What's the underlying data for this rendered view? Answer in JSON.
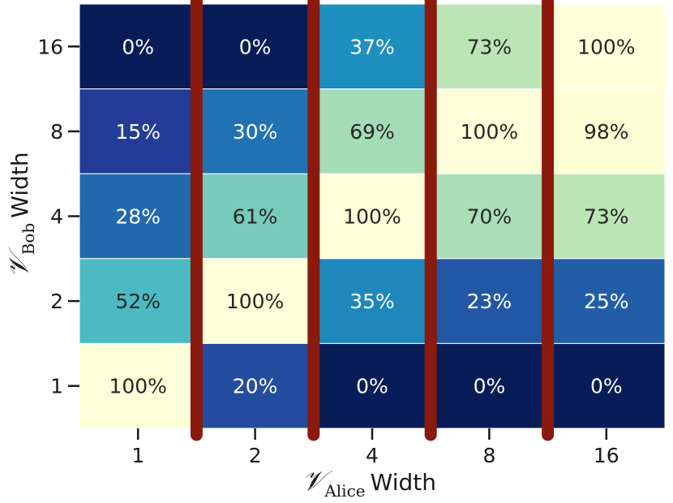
{
  "chart_data": {
    "type": "heatmap",
    "x_symbol": "𝒱",
    "x_subscript": "Alice",
    "x_word": "Width",
    "y_symbol": "𝒱",
    "y_subscript": "Bob",
    "y_word": "Width",
    "x_categories": [
      "1",
      "2",
      "4",
      "8",
      "16"
    ],
    "y_categories": [
      "16",
      "8",
      "4",
      "2",
      "1"
    ],
    "values": [
      [
        0,
        0,
        37,
        73,
        100
      ],
      [
        15,
        30,
        69,
        100,
        98
      ],
      [
        28,
        61,
        100,
        70,
        73
      ],
      [
        52,
        100,
        35,
        23,
        25
      ],
      [
        100,
        20,
        0,
        0,
        0
      ]
    ],
    "labels": [
      [
        "0%",
        "0%",
        "37%",
        "73%",
        "100%"
      ],
      [
        "15%",
        "30%",
        "69%",
        "100%",
        "98%"
      ],
      [
        "28%",
        "61%",
        "100%",
        "70%",
        "73%"
      ],
      [
        "52%",
        "100%",
        "35%",
        "23%",
        "25%"
      ],
      [
        "100%",
        "20%",
        "0%",
        "0%",
        "0%"
      ]
    ],
    "value_range": [
      0,
      100
    ],
    "colormap": [
      "#081d58",
      "#253494",
      "#225ea8",
      "#1d91c0",
      "#41b6c4",
      "#7fcdbb",
      "#c7e9b4",
      "#edf8b1",
      "#ffffd9"
    ],
    "separator_color": "#8b1a0e",
    "separators_between_columns": true
  }
}
